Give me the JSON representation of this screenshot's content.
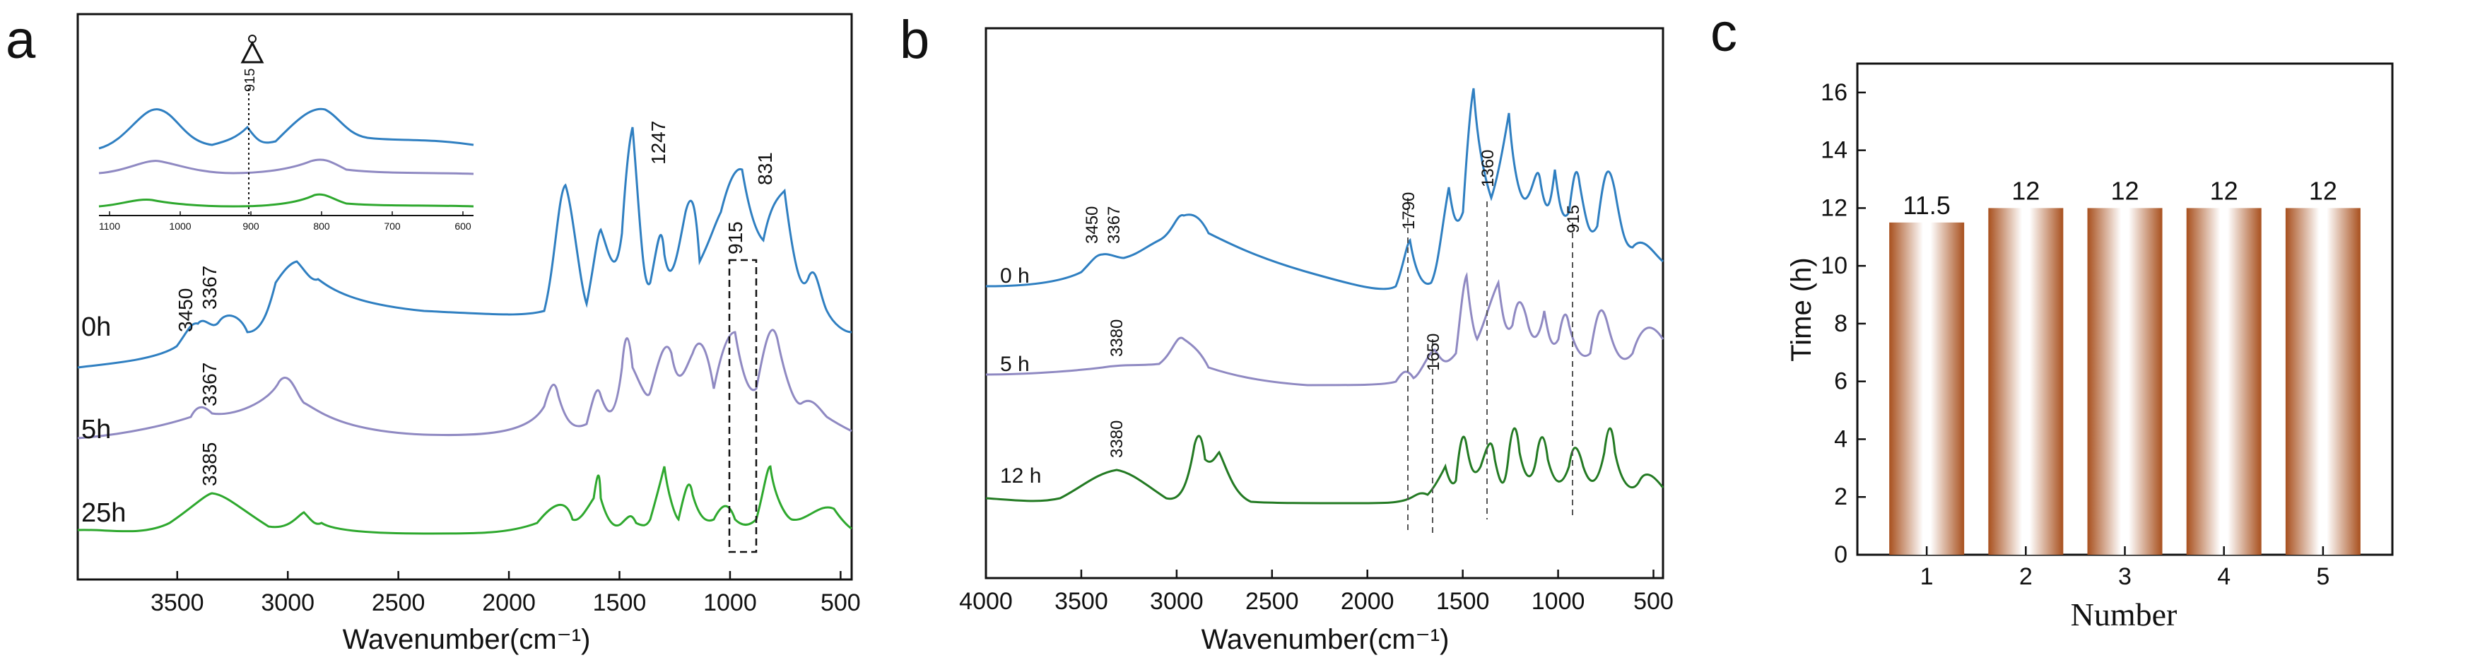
{
  "panels": {
    "a": "a",
    "b": "b",
    "c": "c"
  },
  "colors": {
    "blue": "#2f7fc1",
    "purple": "#8f89c2",
    "green": "#2ea82e",
    "darkgreen": "#237a23",
    "bar_dark": "#a8501e"
  },
  "chart_data": [
    {
      "type": "line",
      "panel": "a",
      "xlabel": "Wavenumber(cm⁻¹)",
      "xlim": [
        3950,
        450
      ],
      "x_reversed": true,
      "xticks": [
        "3500",
        "3000",
        "2500",
        "2000",
        "1500",
        "1000",
        "500"
      ],
      "series": [
        {
          "name": "0h",
          "peaks": [
            "3450",
            "3367",
            "1247",
            "915",
            "831"
          ]
        },
        {
          "name": "5h",
          "peaks": [
            "3367"
          ]
        },
        {
          "name": "25h",
          "peaks": [
            "3385"
          ]
        }
      ],
      "inset": {
        "xticks": [
          "1100",
          "1000",
          "900",
          "800",
          "700",
          "600"
        ],
        "annotation": "915"
      }
    },
    {
      "type": "line",
      "panel": "b",
      "xlabel": "Wavenumber(cm⁻¹)",
      "xlim": [
        4000,
        450
      ],
      "x_reversed": true,
      "xticks": [
        "4000",
        "3500",
        "3000",
        "2500",
        "2000",
        "1500",
        "1000",
        "500"
      ],
      "series": [
        {
          "name": "0 h",
          "peaks": [
            "3450",
            "3367"
          ]
        },
        {
          "name": "5 h",
          "peaks": [
            "3380"
          ]
        },
        {
          "name": "12 h",
          "peaks": [
            "3380"
          ]
        }
      ],
      "markers": [
        "1790",
        "1650",
        "1360",
        "915"
      ]
    },
    {
      "type": "bar",
      "panel": "c",
      "xlabel": "Number",
      "ylabel": "Time (h)",
      "categories": [
        "1",
        "2",
        "3",
        "4",
        "5"
      ],
      "values": [
        11.5,
        12,
        12,
        12,
        12
      ],
      "labels": [
        "11.5",
        "12",
        "12",
        "12",
        "12"
      ],
      "ylim": [
        0,
        17
      ],
      "yticks": [
        "0",
        "2",
        "4",
        "6",
        "8",
        "10",
        "12",
        "14",
        "16"
      ]
    }
  ]
}
